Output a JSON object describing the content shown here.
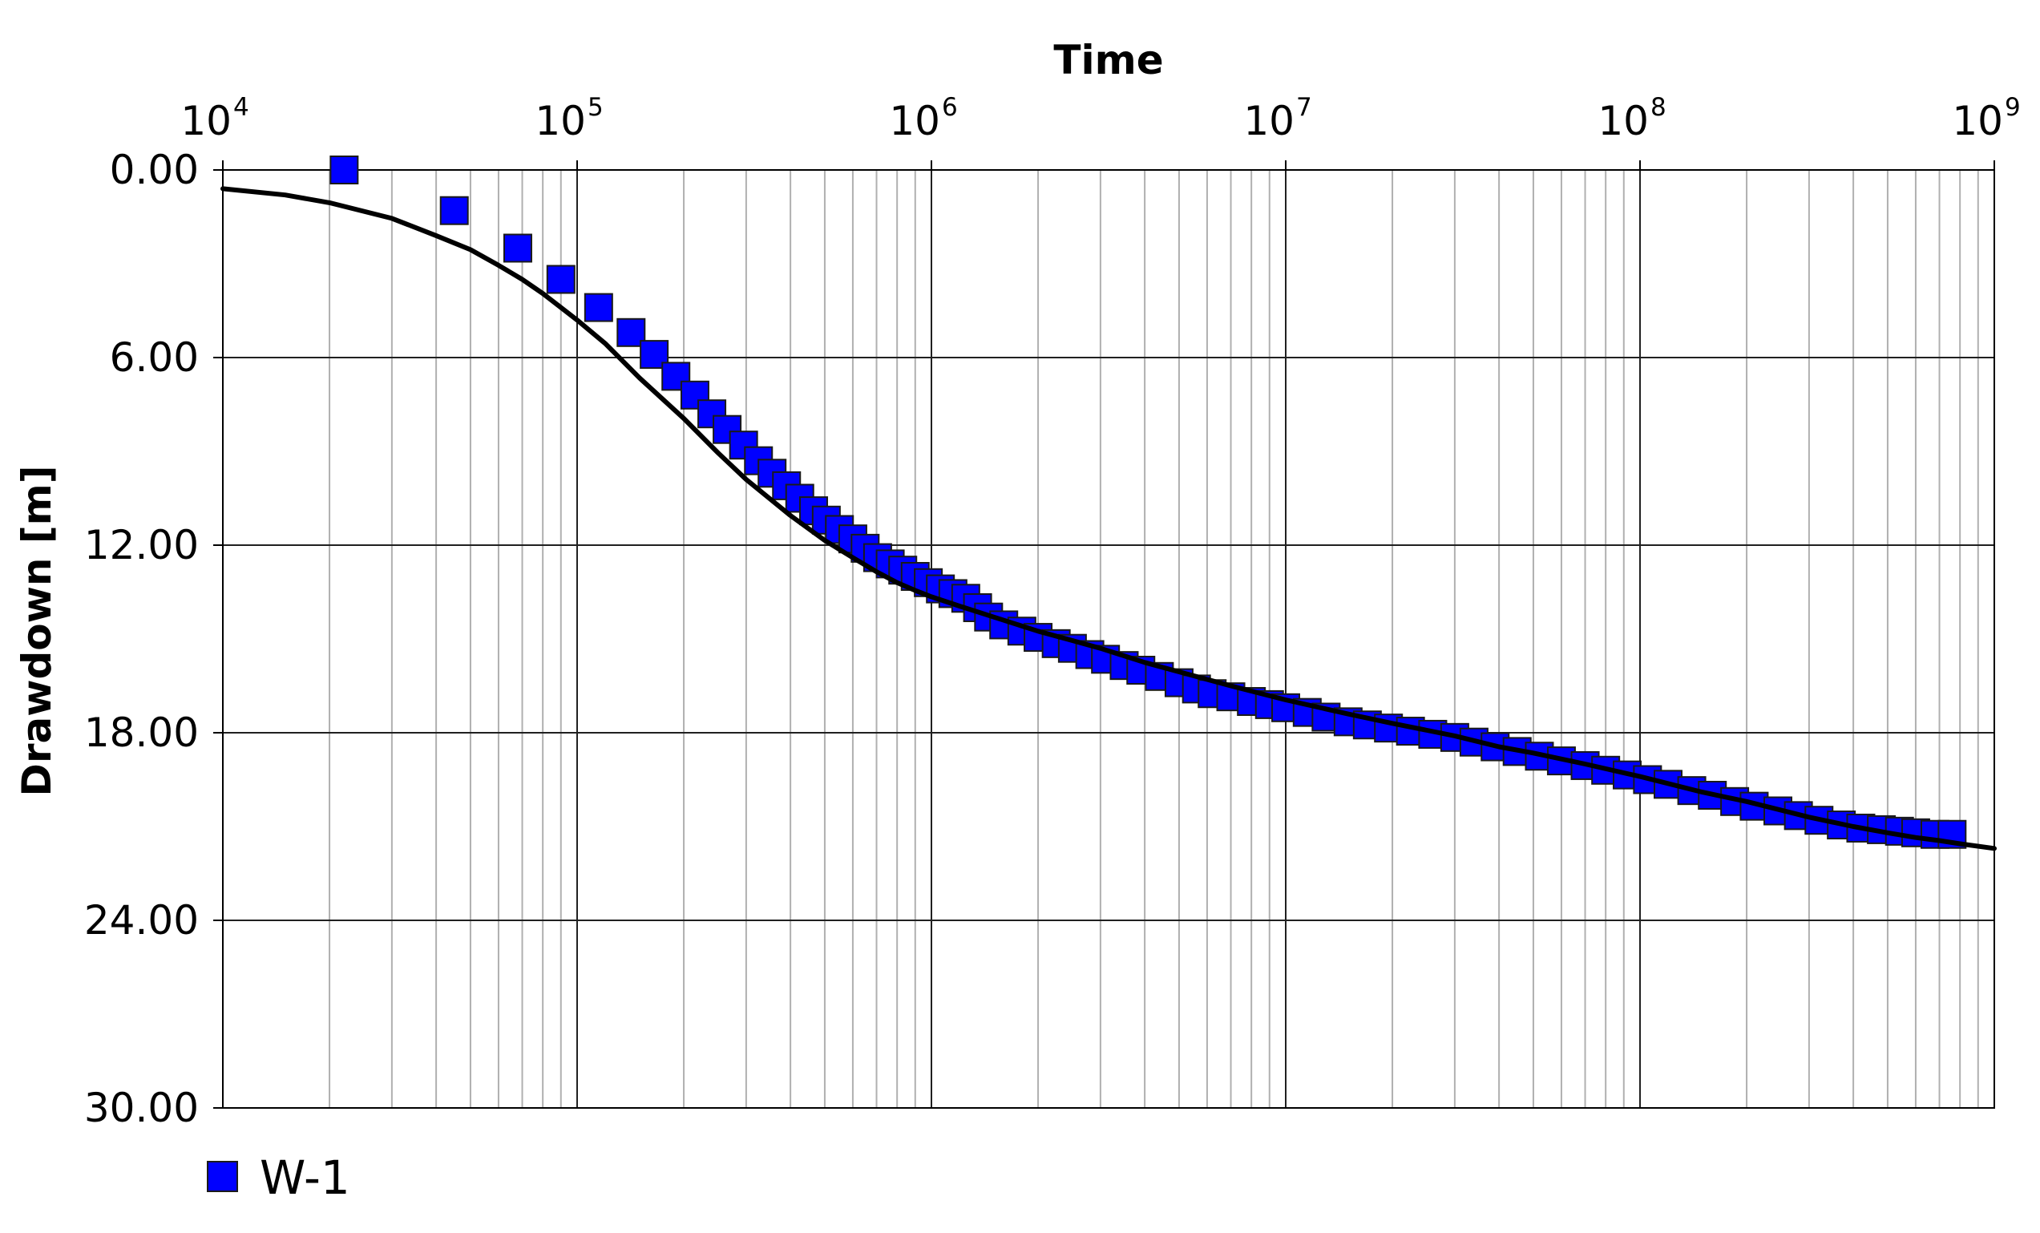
{
  "chart_data": {
    "type": "scatter",
    "xlabel": "Time",
    "ylabel": "Drawdown [m]",
    "x_scale": "log",
    "x_axis_position": "top",
    "y_axis_inverted": true,
    "xlim": [
      10000,
      1000000000
    ],
    "ylim": [
      0,
      30
    ],
    "x_ticks": [
      {
        "base": "10",
        "exp": "4",
        "value": 10000
      },
      {
        "base": "10",
        "exp": "5",
        "value": 100000
      },
      {
        "base": "10",
        "exp": "6",
        "value": 1000000
      },
      {
        "base": "10",
        "exp": "7",
        "value": 10000000
      },
      {
        "base": "10",
        "exp": "8",
        "value": 100000000
      },
      {
        "base": "10",
        "exp": "9",
        "value": 1000000000
      }
    ],
    "y_ticks": [
      "0.00",
      "6.00",
      "12.00",
      "18.00",
      "24.00",
      "30.00"
    ],
    "grid": true,
    "legend_position": "bottom-left",
    "series": [
      {
        "name": "W-1",
        "kind": "markers",
        "marker": "square",
        "color": "#0000ff",
        "edge_color": "#1a1a1a",
        "points": [
          [
            22000,
            0.0
          ],
          [
            45000,
            1.3
          ],
          [
            68000,
            2.5
          ],
          [
            90000,
            3.5
          ],
          [
            115000,
            4.4
          ],
          [
            142000,
            5.2
          ],
          [
            165000,
            5.9
          ],
          [
            190000,
            6.6
          ],
          [
            215000,
            7.2
          ],
          [
            240000,
            7.8
          ],
          [
            265000,
            8.3
          ],
          [
            295000,
            8.8
          ],
          [
            325000,
            9.3
          ],
          [
            355000,
            9.7
          ],
          [
            390000,
            10.1
          ],
          [
            425000,
            10.5
          ],
          [
            465000,
            10.9
          ],
          [
            505000,
            11.2
          ],
          [
            550000,
            11.5
          ],
          [
            600000,
            11.8
          ],
          [
            650000,
            12.1
          ],
          [
            705000,
            12.4
          ],
          [
            765000,
            12.6
          ],
          [
            830000,
            12.8
          ],
          [
            900000,
            13.0
          ],
          [
            980000,
            13.2
          ],
          [
            1060000,
            13.4
          ],
          [
            1150000,
            13.55
          ],
          [
            1250000,
            13.7
          ],
          [
            1350000,
            14.0
          ],
          [
            1450000,
            14.3
          ],
          [
            1600000,
            14.55
          ],
          [
            1800000,
            14.75
          ],
          [
            2000000,
            14.95
          ],
          [
            2250000,
            15.15
          ],
          [
            2500000,
            15.3
          ],
          [
            2800000,
            15.5
          ],
          [
            3100000,
            15.65
          ],
          [
            3500000,
            15.85
          ],
          [
            3900000,
            16.0
          ],
          [
            4400000,
            16.2
          ],
          [
            5000000,
            16.4
          ],
          [
            5600000,
            16.6
          ],
          [
            6200000,
            16.75
          ],
          [
            7000000,
            16.85
          ],
          [
            8000000,
            17.0
          ],
          [
            9000000,
            17.1
          ],
          [
            10000000,
            17.2
          ],
          [
            11500000,
            17.35
          ],
          [
            13000000,
            17.5
          ],
          [
            15000000,
            17.65
          ],
          [
            17000000,
            17.75
          ],
          [
            19500000,
            17.85
          ],
          [
            22500000,
            17.95
          ],
          [
            26000000,
            18.05
          ],
          [
            30000000,
            18.15
          ],
          [
            34000000,
            18.3
          ],
          [
            39000000,
            18.45
          ],
          [
            45000000,
            18.6
          ],
          [
            52000000,
            18.75
          ],
          [
            60000000,
            18.9
          ],
          [
            70000000,
            19.05
          ],
          [
            80000000,
            19.2
          ],
          [
            92000000,
            19.35
          ],
          [
            105000000,
            19.5
          ],
          [
            120000000,
            19.65
          ],
          [
            140000000,
            19.85
          ],
          [
            160000000,
            20.0
          ],
          [
            185000000,
            20.2
          ],
          [
            210000000,
            20.35
          ],
          [
            245000000,
            20.5
          ],
          [
            280000000,
            20.65
          ],
          [
            320000000,
            20.8
          ],
          [
            370000000,
            20.95
          ],
          [
            420000000,
            21.05
          ],
          [
            480000000,
            21.1
          ],
          [
            540000000,
            21.15
          ],
          [
            600000000,
            21.2
          ],
          [
            680000000,
            21.25
          ],
          [
            760000000,
            21.25
          ]
        ]
      },
      {
        "name": "",
        "kind": "line",
        "color": "#000000",
        "points": [
          [
            10000,
            0.6
          ],
          [
            15000,
            0.8
          ],
          [
            20000,
            1.05
          ],
          [
            30000,
            1.55
          ],
          [
            40000,
            2.1
          ],
          [
            50000,
            2.55
          ],
          [
            60000,
            3.05
          ],
          [
            70000,
            3.5
          ],
          [
            80000,
            3.95
          ],
          [
            100000,
            4.8
          ],
          [
            120000,
            5.55
          ],
          [
            150000,
            6.65
          ],
          [
            200000,
            7.95
          ],
          [
            250000,
            9.05
          ],
          [
            300000,
            9.9
          ],
          [
            400000,
            11.05
          ],
          [
            500000,
            11.85
          ],
          [
            600000,
            12.4
          ],
          [
            700000,
            12.85
          ],
          [
            800000,
            13.2
          ],
          [
            900000,
            13.45
          ],
          [
            1000000,
            13.65
          ],
          [
            1200000,
            13.95
          ],
          [
            1500000,
            14.3
          ],
          [
            2000000,
            14.75
          ],
          [
            2500000,
            15.05
          ],
          [
            3000000,
            15.3
          ],
          [
            4000000,
            15.75
          ],
          [
            5000000,
            16.05
          ],
          [
            7000000,
            16.5
          ],
          [
            10000000,
            16.95
          ],
          [
            15000000,
            17.4
          ],
          [
            20000000,
            17.7
          ],
          [
            30000000,
            18.1
          ],
          [
            40000000,
            18.45
          ],
          [
            50000000,
            18.65
          ],
          [
            70000000,
            19.0
          ],
          [
            100000000,
            19.4
          ],
          [
            150000000,
            19.9
          ],
          [
            200000000,
            20.2
          ],
          [
            300000000,
            20.7
          ],
          [
            400000000,
            21.0
          ],
          [
            500000000,
            21.2
          ],
          [
            600000000,
            21.35
          ],
          [
            700000000,
            21.45
          ],
          [
            800000000,
            21.55
          ],
          [
            1000000000,
            21.7
          ]
        ]
      }
    ]
  }
}
